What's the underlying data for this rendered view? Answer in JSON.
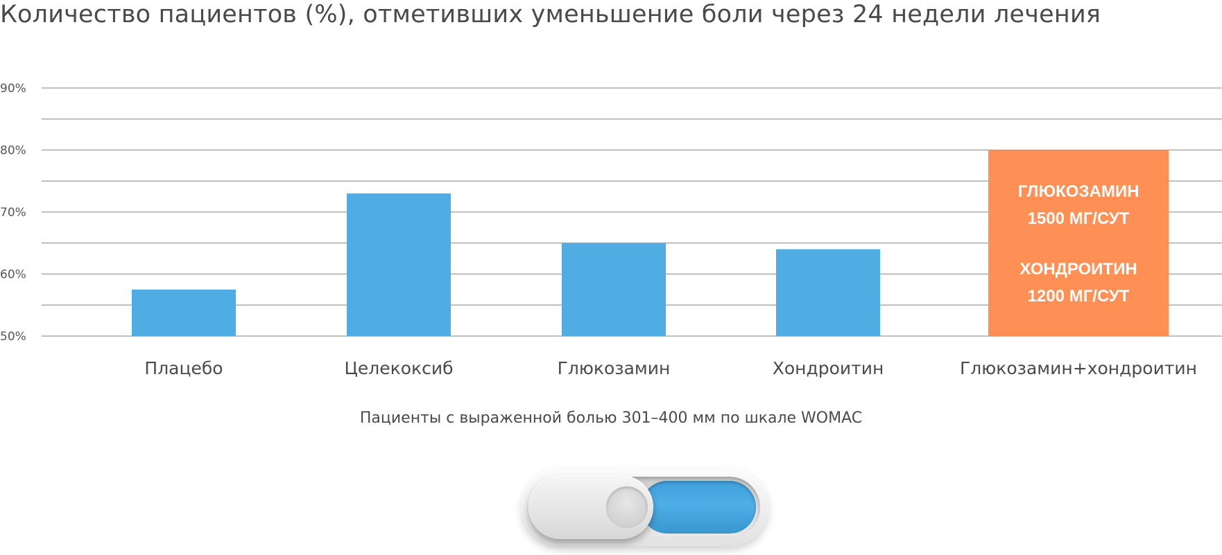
{
  "chart_data": {
    "type": "bar",
    "title": "Количество пациентов (%), отметивших уменьшение боли через 24 недели лечения",
    "xlabel": "Пациенты с выраженной болью 301–400 мм по шкале WOMAC",
    "ylabel": "",
    "ylim": [
      50,
      90
    ],
    "y_ticks": [
      "50%",
      "60%",
      "70%",
      "80%",
      "90%"
    ],
    "y_tick_values": [
      50,
      60,
      70,
      80,
      90
    ],
    "minor_grid_values": [
      55,
      65,
      75,
      85
    ],
    "grid": true,
    "categories": [
      "Плацебо",
      "Целекоксиб",
      "Глюкозамин",
      "Хондроитин",
      "Глюкозамин+хондроитин"
    ],
    "values": [
      57.5,
      73,
      65,
      64,
      80
    ],
    "bar_colors": [
      "#4fade3",
      "#4fade3",
      "#4fade3",
      "#4fade3",
      "#ff9055"
    ],
    "highlight_bar_annotation": {
      "bar_index": 4,
      "lines": [
        "ГЛЮКОЗАМИН",
        "1500 МГ/СУТ",
        "ХОНДРОИТИН",
        "1200 МГ/СУТ"
      ]
    }
  },
  "toggle": {
    "state": "on",
    "accent_color": "#4fade3"
  }
}
